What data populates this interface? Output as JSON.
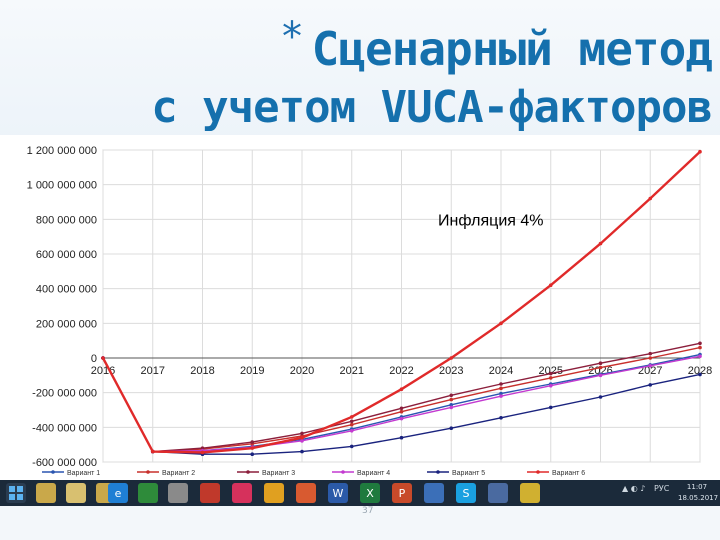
{
  "slide": {
    "star": "*",
    "title_line1": "Сценарный метод",
    "title_line2": "с учетом VUCA-факторов",
    "page_number": "37"
  },
  "chart_data": {
    "type": "line",
    "title": "",
    "annotation": "Инфляция 4%",
    "xlabel": "",
    "ylabel": "",
    "x": [
      2016,
      2017,
      2018,
      2019,
      2020,
      2021,
      2022,
      2023,
      2024,
      2025,
      2026,
      2027,
      2028
    ],
    "x_tick_labels": [
      "2016",
      "2017",
      "2018",
      "2019",
      "2020",
      "2021",
      "2022",
      "2023",
      "2024",
      "2025",
      "2026",
      "2027",
      "2028"
    ],
    "xlim": [
      2016,
      2028
    ],
    "ylim": [
      -600000000,
      1200000000
    ],
    "y_ticks": [
      1200000000,
      1000000000,
      800000000,
      600000000,
      400000000,
      200000000,
      0,
      -200000000,
      -400000000,
      -600000000
    ],
    "y_tick_labels": [
      "1 200 000 000",
      "1 000 000 000",
      "800 000 000",
      "600 000 000",
      "400 000 000",
      "200 000 000",
      "0",
      "-200 000 000",
      "-400 000 000",
      "-600 000 000"
    ],
    "grid": true,
    "legend_position": "bottom",
    "series": [
      {
        "name": "Вариант 1",
        "color": "#2a55b0",
        "values": [
          0,
          -540000000,
          -535000000,
          -510000000,
          -470000000,
          -410000000,
          -340000000,
          -270000000,
          -205000000,
          -150000000,
          -95000000,
          -40000000,
          20000000
        ]
      },
      {
        "name": "Вариант 2",
        "color": "#c8302c",
        "values": [
          0,
          -540000000,
          -525000000,
          -495000000,
          -450000000,
          -385000000,
          -310000000,
          -240000000,
          -175000000,
          -115000000,
          -55000000,
          0,
          60000000
        ]
      },
      {
        "name": "Вариант 3",
        "color": "#8c1f3c",
        "values": [
          0,
          -540000000,
          -520000000,
          -485000000,
          -435000000,
          -365000000,
          -290000000,
          -215000000,
          -150000000,
          -90000000,
          -30000000,
          25000000,
          85000000
        ]
      },
      {
        "name": "Вариант 4",
        "color": "#c33ad0",
        "values": [
          0,
          -540000000,
          -535000000,
          -515000000,
          -478000000,
          -420000000,
          -350000000,
          -285000000,
          -220000000,
          -160000000,
          -100000000,
          -45000000,
          10000000
        ]
      },
      {
        "name": "Вариант 5",
        "color": "#1a237e",
        "values": [
          0,
          -540000000,
          -555000000,
          -555000000,
          -540000000,
          -510000000,
          -460000000,
          -405000000,
          -345000000,
          -285000000,
          -225000000,
          -155000000,
          -95000000
        ]
      },
      {
        "name": "Вариант 6",
        "color": "#e02a2a",
        "values": [
          0,
          -540000000,
          -545000000,
          -520000000,
          -460000000,
          -340000000,
          -180000000,
          0,
          200000000,
          420000000,
          660000000,
          920000000,
          1190000000
        ]
      }
    ]
  },
  "taskbar": {
    "clock_time": "11:07",
    "clock_date": "18.05.2017",
    "lang": "РУС"
  }
}
